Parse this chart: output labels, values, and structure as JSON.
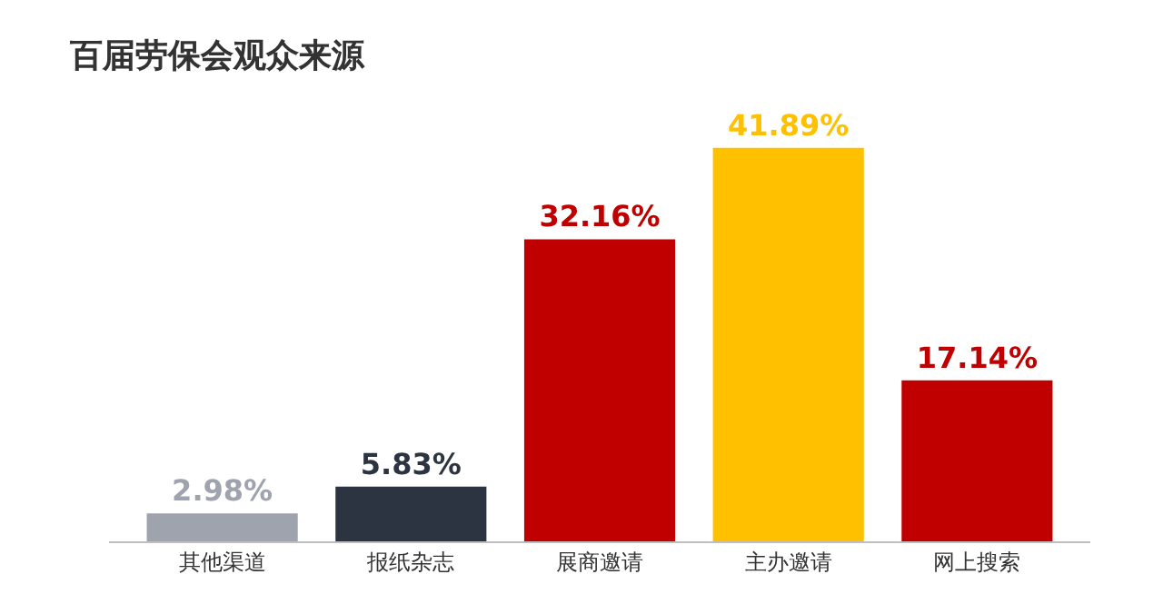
{
  "chart_data": {
    "type": "bar",
    "title": "百届劳保会观众来源",
    "categories": [
      "其他渠道",
      "报纸杂志",
      "展商邀请",
      "主办邀请",
      "网上搜索"
    ],
    "values": [
      2.98,
      5.83,
      32.16,
      41.89,
      17.14
    ],
    "value_labels": [
      "2.98%",
      "5.83%",
      "32.16%",
      "41.89%",
      "17.14%"
    ],
    "colors": [
      "#9ea3ad",
      "#2b3440",
      "#c00000",
      "#ffc000",
      "#c00000"
    ],
    "tick_labels": "x"
  }
}
